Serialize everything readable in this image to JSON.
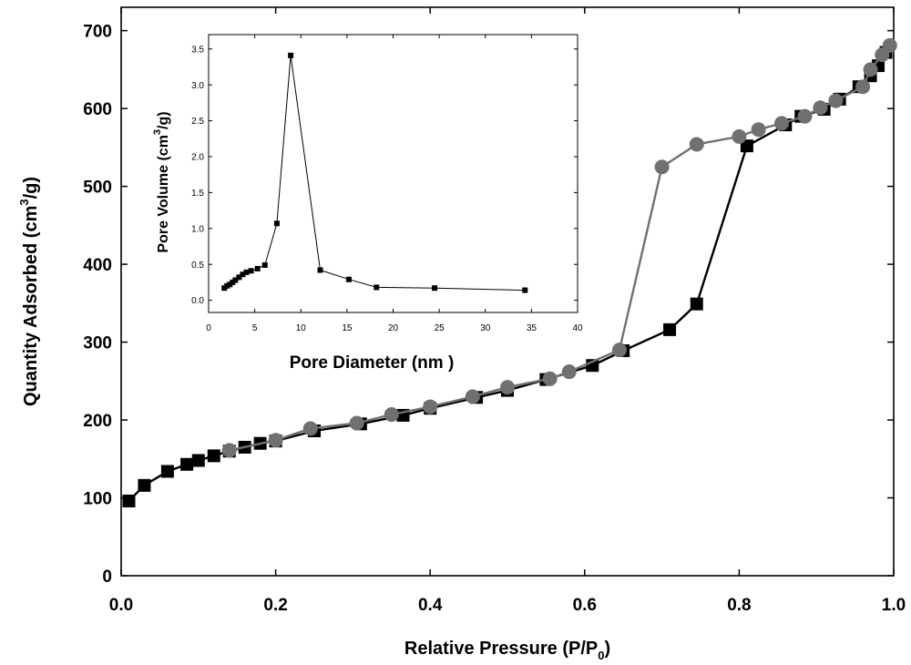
{
  "chart_data": [
    {
      "type": "line",
      "xlabel": "Relative Pressure (P/P",
      "xlabel_sub": "0",
      "xlabel_end": ")",
      "ylabel": "Quantity Adsorbed (cm",
      "ylabel_sup": "3",
      "ylabel_end": "/g)",
      "xlim": [
        0,
        1.0
      ],
      "ylim": [
        0,
        730
      ],
      "xticks": [
        0.0,
        0.2,
        0.4,
        0.6,
        0.8,
        1.0
      ],
      "xtick_labels": [
        "0.0",
        "0.2",
        "0.4",
        "0.6",
        "0.8",
        "1.0"
      ],
      "yticks": [
        0,
        100,
        200,
        300,
        400,
        500,
        600,
        700
      ],
      "ytick_labels": [
        "0",
        "100",
        "200",
        "300",
        "400",
        "500",
        "600",
        "700"
      ],
      "grid": false,
      "series": [
        {
          "color": "#000000",
          "marker": "square",
          "x": [
            0.01,
            0.03,
            0.06,
            0.085,
            0.1,
            0.12,
            0.14,
            0.16,
            0.18,
            0.2,
            0.25,
            0.31,
            0.365,
            0.4,
            0.46,
            0.5,
            0.55,
            0.61,
            0.65,
            0.71,
            0.745,
            0.81,
            0.86,
            0.88,
            0.91,
            0.93,
            0.955,
            0.97,
            0.98,
            0.99
          ],
          "y": [
            96,
            116,
            134,
            143,
            148,
            154,
            160,
            165,
            170,
            173,
            186,
            195,
            206,
            215,
            229,
            238,
            252,
            270,
            289,
            316,
            349,
            552,
            579,
            590,
            599,
            612,
            628,
            642,
            655,
            672
          ]
        },
        {
          "color": "#707070",
          "marker": "circle",
          "x": [
            0.14,
            0.2,
            0.245,
            0.305,
            0.35,
            0.4,
            0.455,
            0.5,
            0.555,
            0.58,
            0.645,
            0.7,
            0.745,
            0.8,
            0.825,
            0.855,
            0.885,
            0.905,
            0.925,
            0.96,
            0.97,
            0.985,
            0.995
          ],
          "y": [
            161,
            174,
            189,
            196,
            207,
            217,
            230,
            242,
            253,
            262,
            290,
            525,
            554,
            564,
            573,
            581,
            590,
            601,
            610,
            628,
            650,
            669,
            681
          ]
        }
      ]
    },
    {
      "type": "line",
      "xlabel": "Pore Diameter (nm )",
      "ylabel": "Pore Volume (cm",
      "ylabel_sup": "3",
      "ylabel_end": "/g)",
      "xlim": [
        0,
        40
      ],
      "ylim": [
        -0.17,
        3.7
      ],
      "xticks": [
        0,
        5,
        10,
        15,
        20,
        25,
        30,
        35,
        40
      ],
      "xtick_labels": [
        "0",
        "5",
        "10",
        "15",
        "20",
        "25",
        "30",
        "35",
        "40"
      ],
      "yticks": [
        0.0,
        0.5,
        1.0,
        1.5,
        2.0,
        2.5,
        3.0,
        3.5
      ],
      "ytick_labels": [
        "0.0",
        "0.5",
        "1.0",
        "1.5",
        "2.0",
        "2.5",
        "3.0",
        "3.5"
      ],
      "grid": false,
      "series": [
        {
          "color": "#000000",
          "marker": "square",
          "x": [
            1.7,
            2.0,
            2.3,
            2.6,
            2.9,
            3.3,
            3.7,
            4.1,
            4.6,
            5.3,
            6.1,
            7.4,
            8.9,
            12.1,
            15.2,
            18.2,
            24.5,
            34.3
          ],
          "y": [
            0.17,
            0.2,
            0.22,
            0.25,
            0.28,
            0.32,
            0.36,
            0.39,
            0.41,
            0.44,
            0.49,
            1.07,
            3.41,
            0.42,
            0.29,
            0.18,
            0.17,
            0.14
          ]
        }
      ]
    }
  ]
}
